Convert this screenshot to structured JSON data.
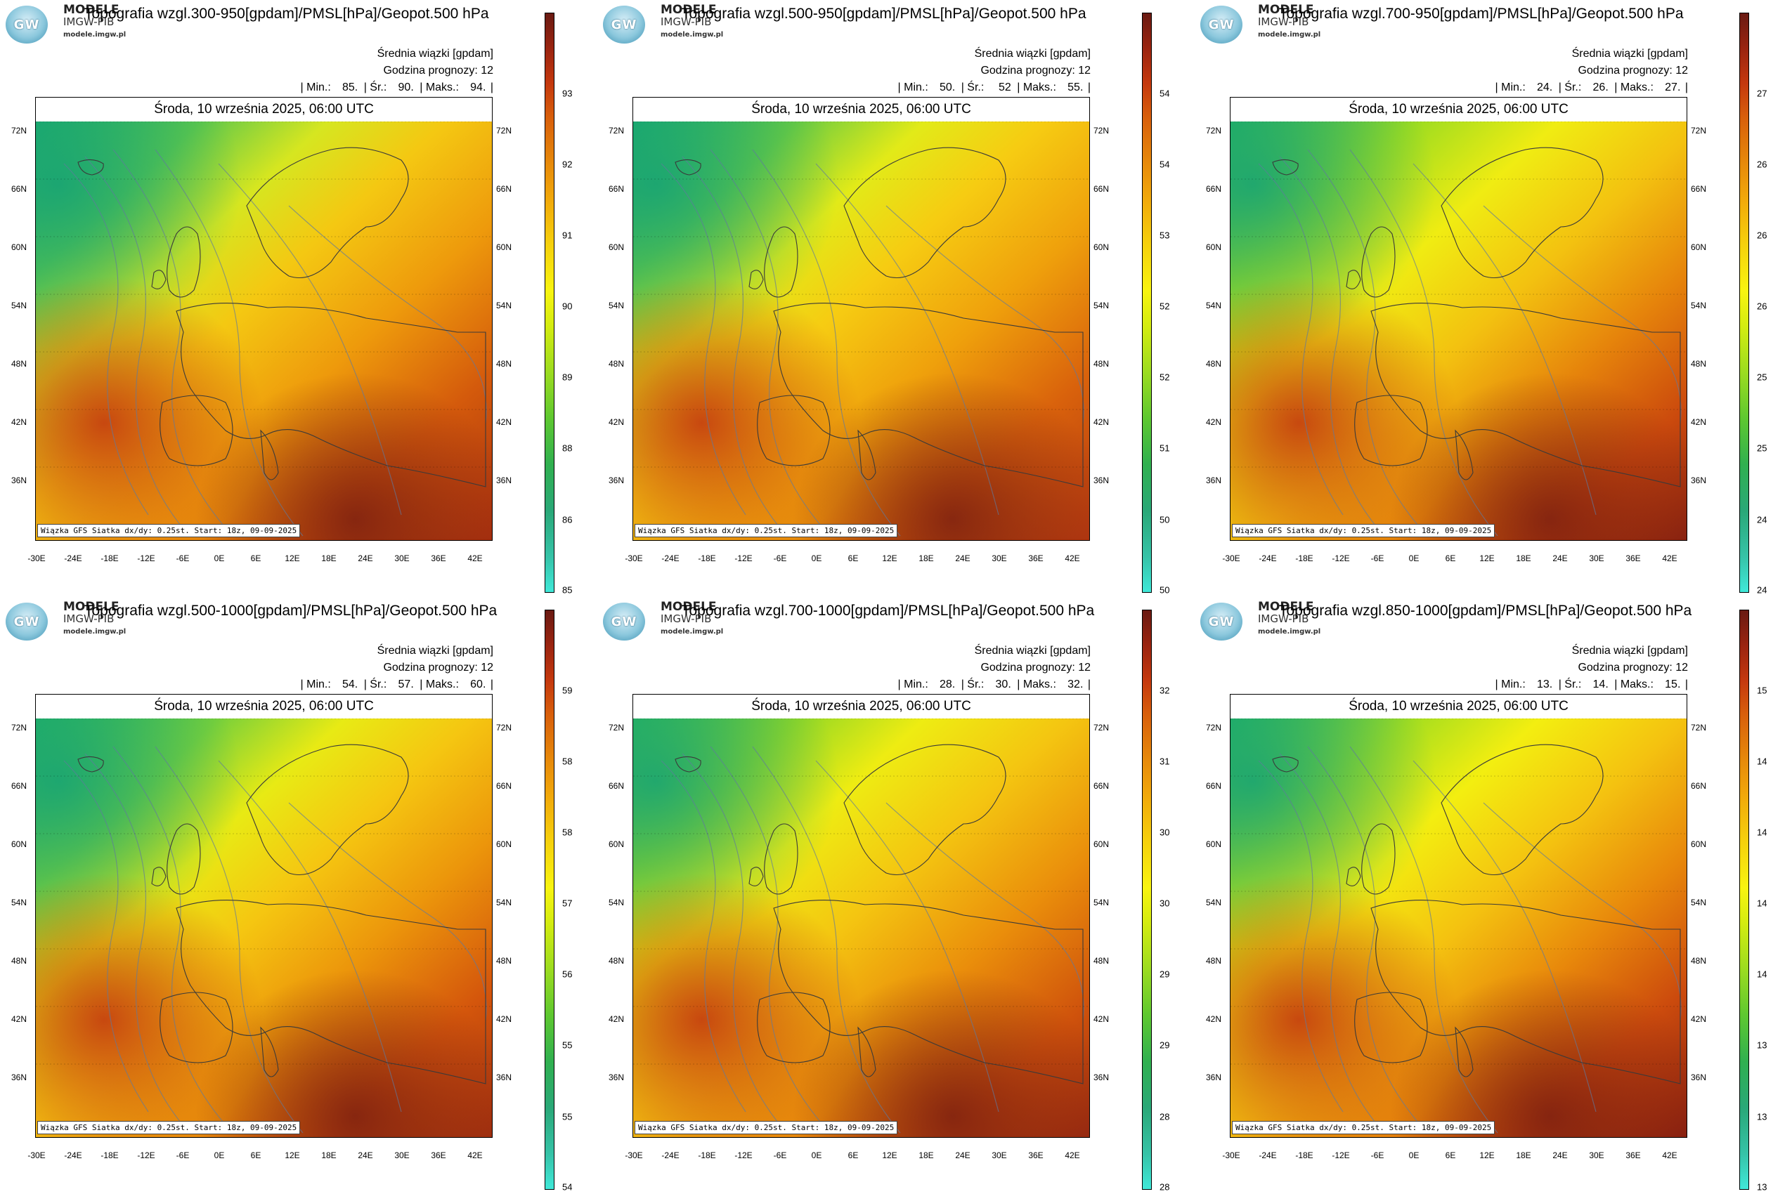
{
  "common": {
    "brand_top": "MODELE",
    "brand_sub": "IMGW-PIB",
    "brand_url": "modele.imgw.pl",
    "logo_text": "GW",
    "subtitle_mean": "Średnia wiązki [gpdam]",
    "forecast_hour": "Godzina prognozy: 12",
    "date_line": "Środa, 10 września 2025, 06:00 UTC",
    "footer": "Wiązka GFS Siatka dx/dy: 0.25st. Start: 18z, 09-09-2025",
    "stat_min_label": "| Min.:",
    "stat_avg_label": "| Śr.:",
    "stat_max_label": "| Maks.:",
    "lat_labels": [
      "72N",
      "66N",
      "60N",
      "54N",
      "48N",
      "42N",
      "36N"
    ],
    "lon_labels": [
      "-30E",
      "-24E",
      "-18E",
      "-12E",
      "-6E",
      "0E",
      "6E",
      "12E",
      "18E",
      "24E",
      "30E",
      "36E",
      "42E"
    ],
    "colors": {
      "low": "#2fb865",
      "mid": "#f6d10c",
      "high": "#c4380e",
      "extreme": "#6a1a12"
    }
  },
  "panels": [
    {
      "title": "Topografia wzgl.300-950[gpdam]/PMSL[hPa]/Geopot.500 hPa",
      "min": "85.",
      "avg": "90.",
      "max": "94.",
      "colorbar_ticks": [
        "93",
        "92",
        "91",
        "90",
        "89",
        "88",
        "86",
        "85"
      ]
    },
    {
      "title": "Topografia wzgl.500-950[gpdam]/PMSL[hPa]/Geopot.500 hPa",
      "min": "50.",
      "avg": "52",
      "max": "55.",
      "colorbar_ticks": [
        "54",
        "54",
        "53",
        "52",
        "52",
        "51",
        "50",
        "50"
      ]
    },
    {
      "title": "Topografia wzgl.700-950[gpdam]/PMSL[hPa]/Geopot.500 hPa",
      "min": "24.",
      "avg": "26.",
      "max": "27.",
      "colorbar_ticks": [
        "27",
        "26",
        "26",
        "26",
        "25",
        "25",
        "24",
        "24"
      ]
    },
    {
      "title": "Topografia wzgl.500-1000[gpdam]/PMSL[hPa]/Geopot.500 hPa",
      "min": "54.",
      "avg": "57.",
      "max": "60.",
      "colorbar_ticks": [
        "59",
        "58",
        "58",
        "57",
        "56",
        "55",
        "55",
        "54"
      ]
    },
    {
      "title": "Topografia wzgl.700-1000[gpdam]/PMSL[hPa]/Geopot.500 hPa",
      "min": "28.",
      "avg": "30.",
      "max": "32.",
      "colorbar_ticks": [
        "32",
        "31",
        "30",
        "30",
        "29",
        "29",
        "28",
        "28"
      ]
    },
    {
      "title": "Topografia wzgl.850-1000[gpdam]/PMSL[hPa]/Geopot.500 hPa",
      "min": "13.",
      "avg": "14.",
      "max": "15.",
      "colorbar_ticks": [
        "15",
        "14",
        "14",
        "14",
        "14",
        "13",
        "13",
        "13"
      ]
    }
  ]
}
